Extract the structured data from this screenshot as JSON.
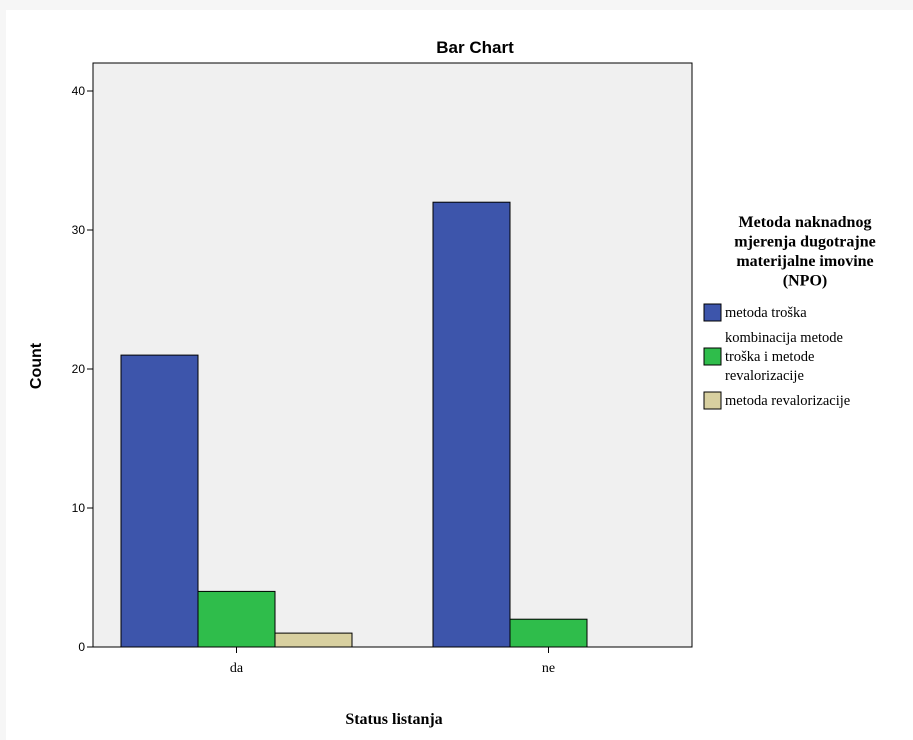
{
  "chart_data": {
    "type": "bar",
    "title": "Bar Chart",
    "xlabel": "Status listanja",
    "ylabel": "Count",
    "categories": [
      "da",
      "ne"
    ],
    "ylim": [
      0,
      40
    ],
    "yticks": [
      0,
      10,
      20,
      30,
      40
    ],
    "grid": false,
    "legend_position": "right",
    "legend_title": [
      "Metoda naknadnog",
      "mjerenja dugotrajne",
      "materijalne imovine",
      "(NPO)"
    ],
    "plot_background": "#f0f0f0",
    "series": [
      {
        "name": "metoda troška",
        "legend_lines": [
          "metoda troška"
        ],
        "values": [
          21,
          32
        ],
        "color": "#3d55ab"
      },
      {
        "name": "kombinacija metode troška i metode revalorizacije",
        "legend_lines": [
          "kombinacija metode",
          "troška i metode",
          "revalorizacije"
        ],
        "values": [
          4,
          2
        ],
        "color": "#2fbd4b"
      },
      {
        "name": "metoda revalorizacije",
        "legend_lines": [
          "metoda revalorizacije"
        ],
        "values": [
          1,
          0
        ],
        "color": "#d8d0a0"
      }
    ]
  }
}
